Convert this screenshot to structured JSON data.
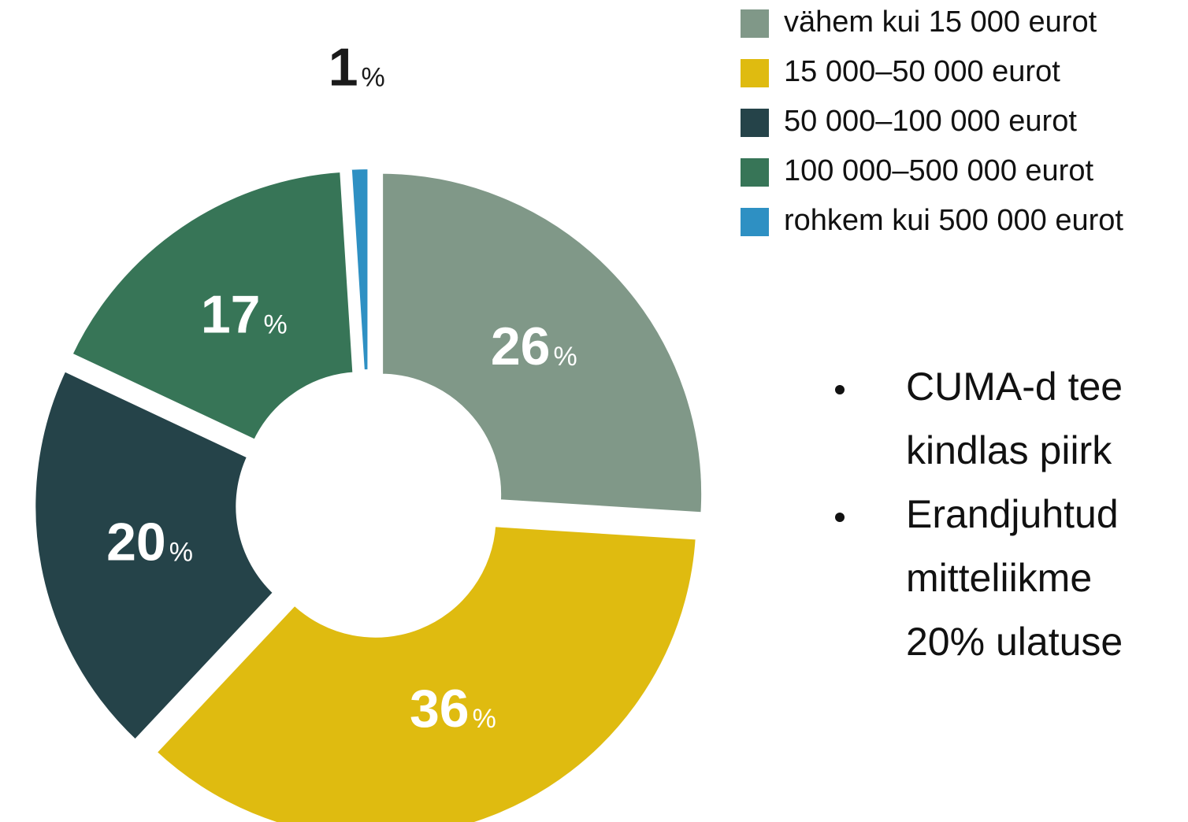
{
  "chart_data": {
    "type": "donut",
    "categories": [
      "vähem kui 15 000 eurot",
      "15 000–50 000 eurot",
      "50 000–100 000 eurot",
      "100 000–500 000 eurot",
      "rohkem kui 500 000 eurot"
    ],
    "values": [
      26,
      36,
      20,
      17,
      1
    ],
    "value_labels": [
      "26%",
      "36%",
      "20%",
      "17%",
      "1%"
    ],
    "colors": [
      "#809888",
      "#dfbb10",
      "#254349",
      "#377557",
      "#2e90c3"
    ],
    "legend": "top-right"
  },
  "bullets": [
    [
      "CUMA-d tee",
      "kindlas piirk"
    ],
    [
      "Erandjuhtud",
      "mitteliikme",
      "20% ulatuse"
    ]
  ]
}
